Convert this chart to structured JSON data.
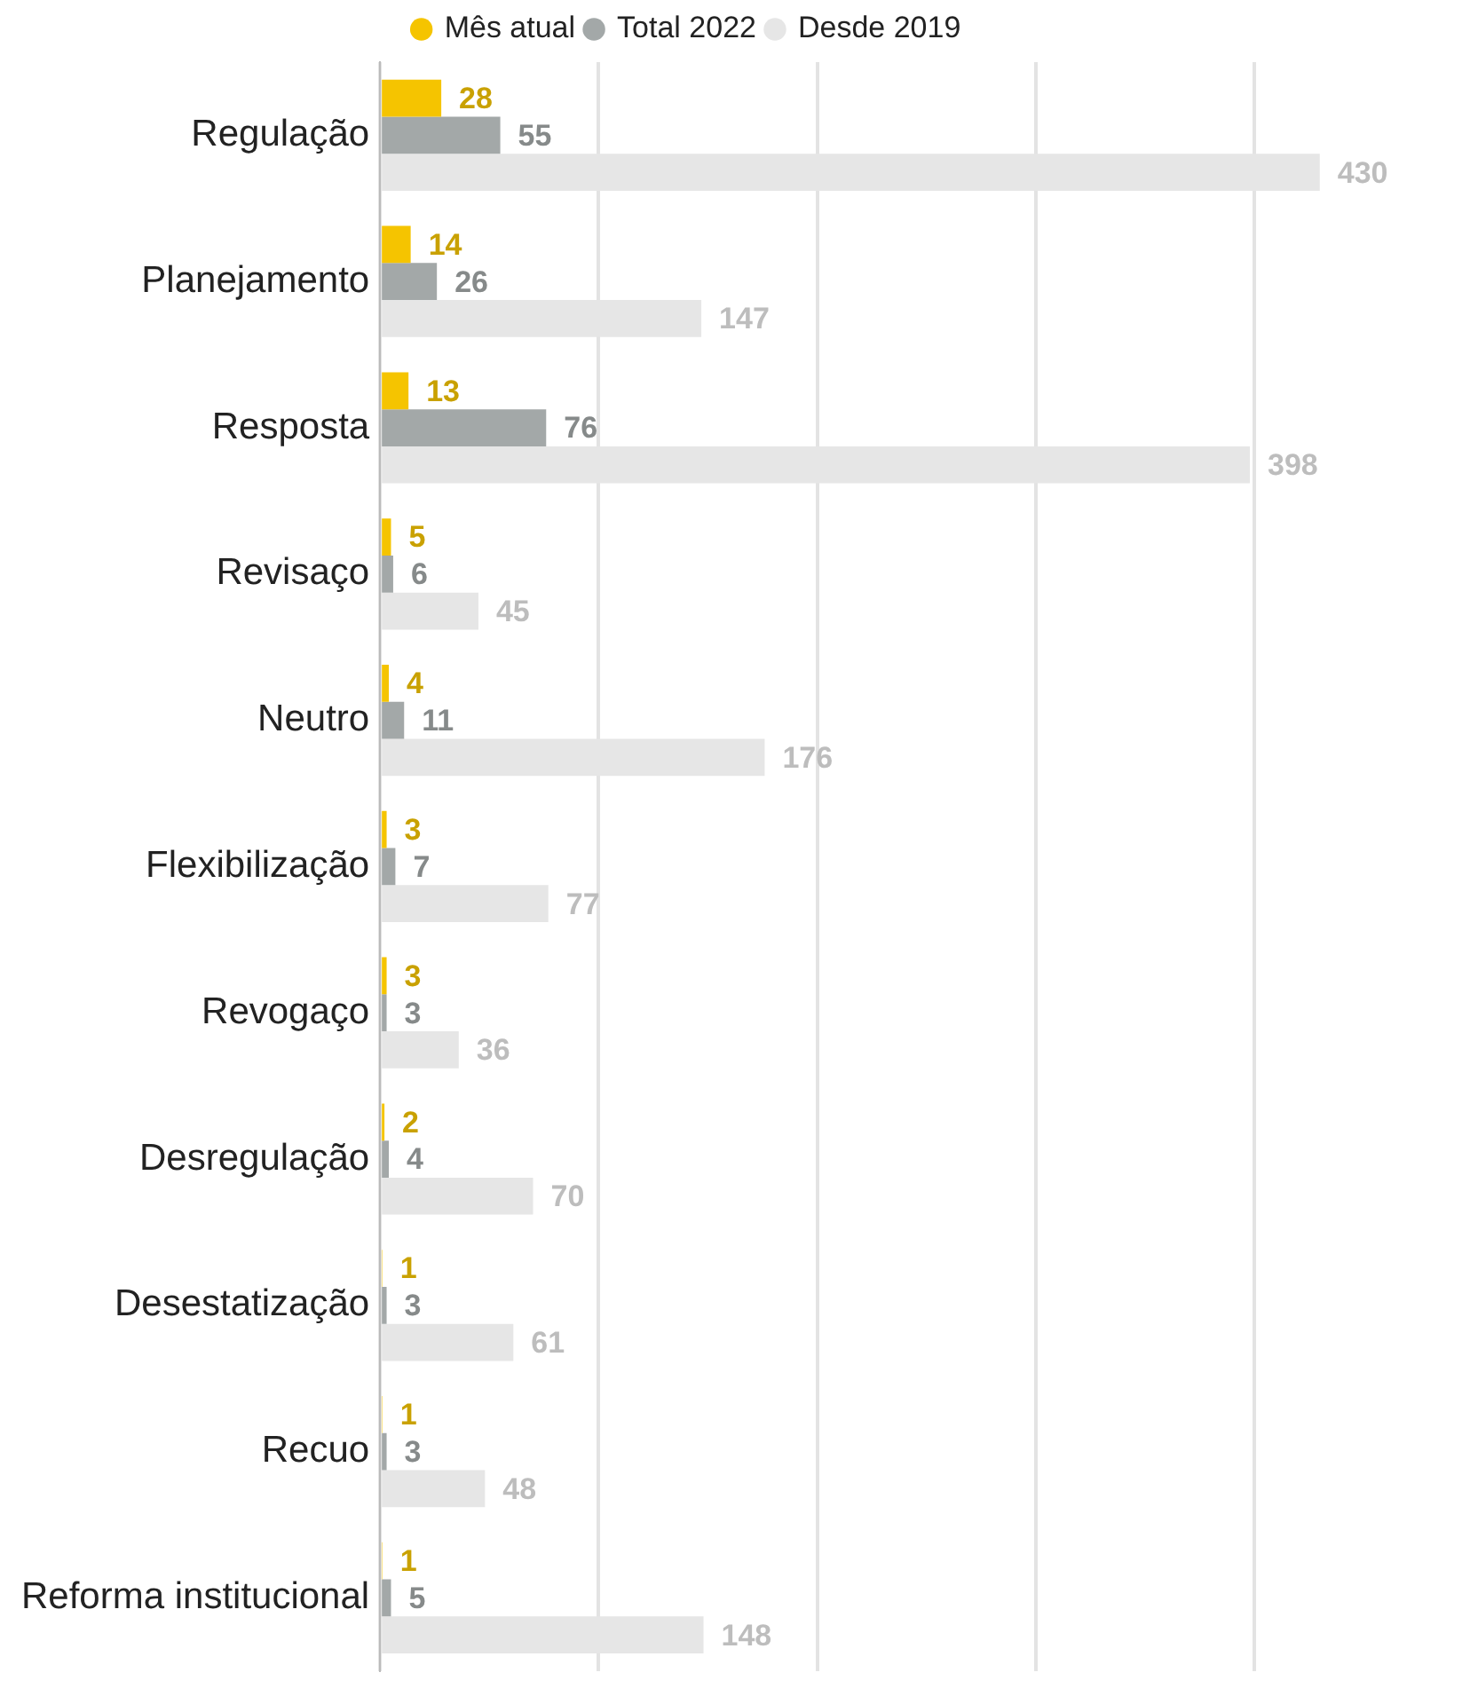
{
  "chart_data": {
    "type": "bar",
    "orientation": "horizontal",
    "categories": [
      "Regulação",
      "Planejamento",
      "Resposta",
      "Revisaço",
      "Neutro",
      "Flexibilização",
      "Revogaço",
      "Desregulação",
      "Desestatização",
      "Recuo",
      "Reforma institucional"
    ],
    "series": [
      {
        "name": "Mês atual",
        "color": "#f5c400",
        "values": [
          28,
          14,
          13,
          5,
          4,
          3,
          3,
          2,
          1,
          1,
          1
        ]
      },
      {
        "name": "Total 2022",
        "color": "#a3a8a8",
        "values": [
          55,
          26,
          76,
          6,
          11,
          7,
          3,
          4,
          3,
          3,
          5
        ]
      },
      {
        "name": "Desde 2019",
        "color": "#e6e6e6",
        "values": [
          430,
          147,
          398,
          45,
          176,
          77,
          36,
          70,
          61,
          48,
          148
        ]
      }
    ],
    "xticks": [
      {
        "value": 0,
        "label": null
      },
      {
        "value": 100,
        "label": null
      },
      {
        "value": 200,
        "label": null
      },
      {
        "value": 300,
        "label": null
      },
      {
        "value": 400,
        "label": null
      }
    ],
    "tick_labels": "y",
    "grid": "x",
    "legend": "top",
    "data_labels": true
  }
}
